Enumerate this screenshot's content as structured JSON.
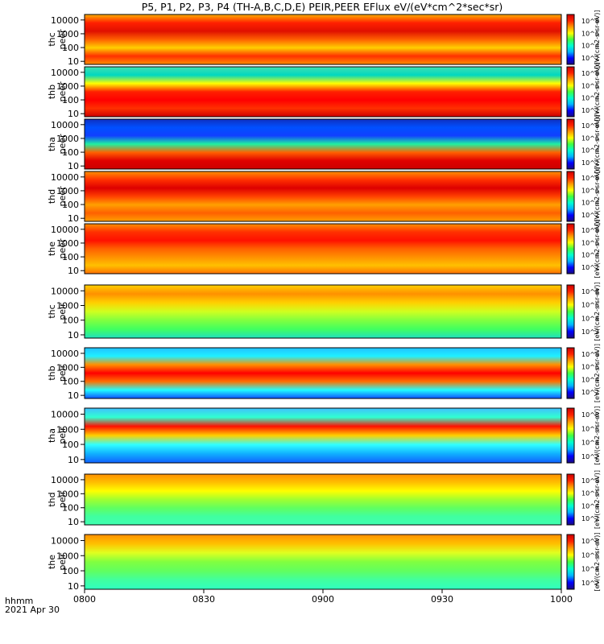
{
  "chart_data": {
    "type": "heatmap",
    "title": "P5, P1, P2, P3, P4 (TH-A,B,C,D,E) PEIR,PEER EFlux eV/(eV*cm^2*sec*sr)",
    "x_ticks": [
      "0800",
      "0830",
      "0900",
      "0930",
      "1000"
    ],
    "x_label_1": "hhmm",
    "x_label_2": "2021 Apr 30",
    "y_scale": "log",
    "y_ticks": [
      10,
      100,
      1000,
      10000
    ],
    "color_scale": "log",
    "colorbar_ticks": [
      "10^2",
      "10^4",
      "10^6",
      "10^8"
    ],
    "colorbar_label": "[eV/(cm2-s-sr-eV)]",
    "palette": [
      "#1a0a80",
      "#0000ff",
      "#00b4ff",
      "#00ffd0",
      "#40ff40",
      "#ffff00",
      "#ff9900",
      "#ff2200",
      "#cc0000"
    ],
    "panels": [
      {
        "name": "thc peer",
        "line1": "thc",
        "line2": "peer"
      },
      {
        "name": "thb peer",
        "line1": "thb",
        "line2": "peer"
      },
      {
        "name": "tha peer",
        "line1": "tha",
        "line2": "peer"
      },
      {
        "name": "thd peer",
        "line1": "thd",
        "line2": "peer"
      },
      {
        "name": "the peer",
        "line1": "the",
        "line2": "peer"
      },
      {
        "name": "thc peir",
        "line1": "thc",
        "line2": "peir"
      },
      {
        "name": "thb peir",
        "line1": "thb",
        "line2": "peir"
      },
      {
        "name": "tha peir",
        "line1": "tha",
        "line2": "peir"
      },
      {
        "name": "thd peir",
        "line1": "thd",
        "line2": "peir"
      },
      {
        "name": "the peir",
        "line1": "the",
        "line2": "peir"
      }
    ]
  }
}
